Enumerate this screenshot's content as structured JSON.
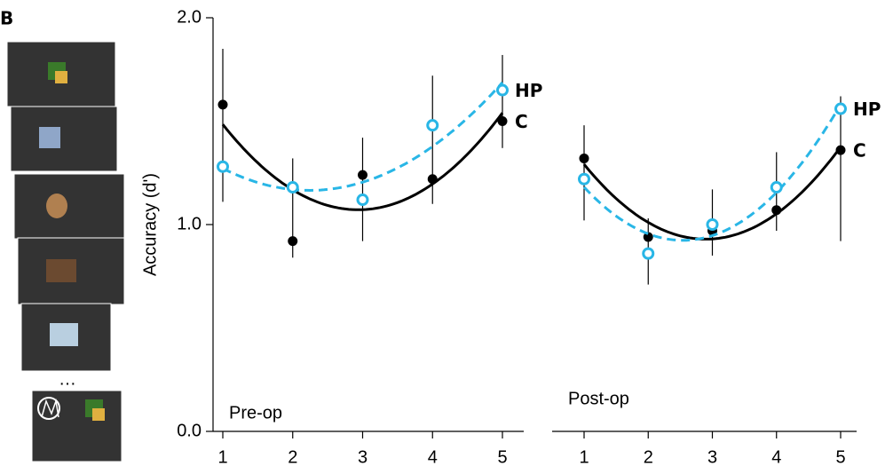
{
  "panel_label": "B",
  "ellipsis": "…",
  "chart_data": [
    {
      "type": "line",
      "title": "Pre-op",
      "y_label": "Accuracy (d')",
      "categories": [
        "1",
        "2",
        "3",
        "4",
        "5"
      ],
      "ylim": [
        0,
        2
      ],
      "yticks": [
        {
          "value": 0,
          "label": "0.0"
        },
        {
          "value": 1,
          "label": "1.0"
        },
        {
          "value": 2,
          "label": "2.0"
        }
      ],
      "series": [
        {
          "name": "C",
          "color": "#000000",
          "values": [
            1.58,
            0.92,
            1.24,
            1.22,
            1.5
          ]
        },
        {
          "name": "HP",
          "color": "#29b6e6",
          "values": [
            1.28,
            1.18,
            1.12,
            1.48,
            1.65
          ]
        }
      ],
      "error_bars": [
        {
          "low": 1.11,
          "high": 1.85
        },
        {
          "low": 0.84,
          "high": 1.32
        },
        {
          "low": 0.92,
          "high": 1.42
        },
        {
          "low": 1.1,
          "high": 1.72
        },
        {
          "low": 1.37,
          "high": 1.82
        }
      ]
    },
    {
      "type": "line",
      "title": "Post-op",
      "categories": [
        "1",
        "2",
        "3",
        "4",
        "5"
      ],
      "ylim": [
        0,
        2
      ],
      "series": [
        {
          "name": "C",
          "color": "#000000",
          "values": [
            1.32,
            0.94,
            0.97,
            1.07,
            1.36
          ]
        },
        {
          "name": "HP",
          "color": "#29b6e6",
          "values": [
            1.22,
            0.86,
            1.0,
            1.18,
            1.56
          ]
        }
      ],
      "error_bars": [
        {
          "low": 1.02,
          "high": 1.48
        },
        {
          "low": 0.71,
          "high": 1.03
        },
        {
          "low": 0.85,
          "high": 1.17
        },
        {
          "low": 0.97,
          "high": 1.35
        },
        {
          "low": 0.92,
          "high": 1.62
        }
      ]
    }
  ]
}
